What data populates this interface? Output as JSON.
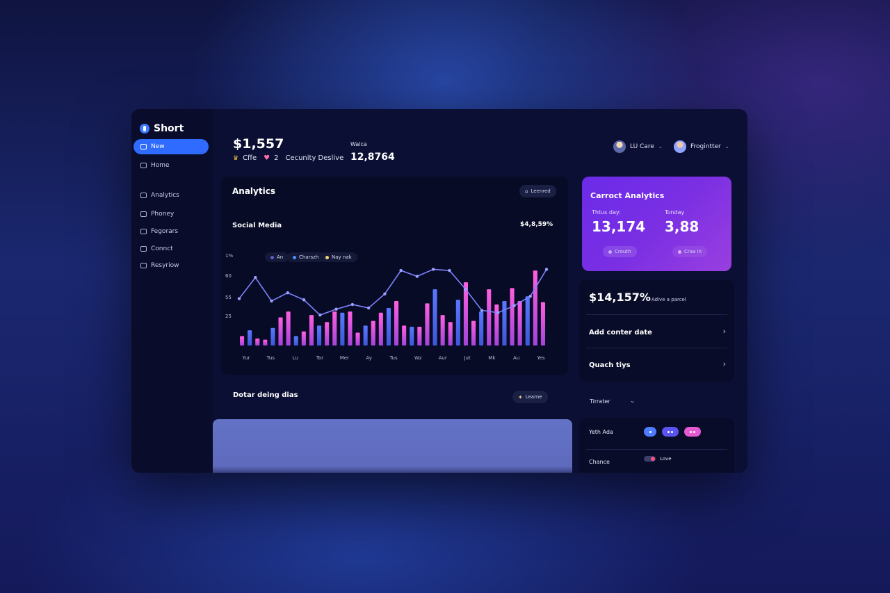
{
  "sidebar": {
    "brand": "Short",
    "items": [
      {
        "label": "New",
        "active": true
      },
      {
        "label": "Home"
      },
      {
        "label": "Analytics"
      },
      {
        "label": "Phoney"
      },
      {
        "label": "Fegorars"
      },
      {
        "label": "Connct"
      },
      {
        "label": "Resyriow"
      }
    ]
  },
  "header": {
    "amount": "$1,557",
    "sub_a": "Cffe",
    "sub_b": "2",
    "sub_c": "Cecunity Deslive",
    "stat_label": "Walca",
    "stat_value": "12,8764",
    "user1": "LU Care",
    "user2": "Frogintter"
  },
  "analytics": {
    "title": "Analytics",
    "button": "Leenred",
    "subtitle": "Social Media",
    "value_badge": "$4,8,59%",
    "legend": [
      "An",
      "Charszh",
      "Nay nak"
    ]
  },
  "chart_data": {
    "type": "bar",
    "title": "Social Media",
    "ytick_labels": [
      "1%",
      "60",
      "55",
      "25"
    ],
    "xtick_labels": [
      "Yur",
      "Tus",
      "Lu",
      "Tor",
      "Mer",
      "Ay",
      "Tus",
      "Wz",
      "Aur",
      "Jut",
      "Mk",
      "Au",
      "Yes"
    ],
    "series": [
      {
        "name": "An",
        "kind": "bar",
        "values": [
          8,
          13,
          6,
          5,
          15,
          24,
          29,
          8,
          12,
          26,
          17,
          20,
          29,
          28,
          29,
          11,
          17,
          21,
          28,
          32,
          38,
          17,
          16,
          16,
          36,
          48,
          26,
          20,
          39,
          54,
          21,
          29,
          48,
          35,
          38,
          49,
          38,
          42,
          64,
          37
        ]
      },
      {
        "name": "Charszh",
        "kind": "line",
        "values": [
          40,
          58,
          38,
          45,
          39,
          26,
          31,
          35,
          32,
          44,
          64,
          59,
          65,
          64,
          48,
          30,
          28,
          34,
          42,
          65
        ]
      }
    ]
  },
  "section2": {
    "title": "Dotar deing dias",
    "button": "Learne"
  },
  "carrot": {
    "title": "Carroct Analytics",
    "label1": "Thtus day:",
    "value1": "13,174",
    "label2": "Tonday",
    "value2": "3,88",
    "tag1": "Crouth",
    "tag2": "Craa in"
  },
  "stats_card": {
    "value": "$14,157%",
    "sub": "Adive a parcel",
    "row1": "Add conter date",
    "row2": "Quach tiys"
  },
  "filter": {
    "label": "Tirrater"
  },
  "settings": {
    "row1": "Yeth Ada",
    "row2": "Chance",
    "toggle_label": "Love"
  },
  "colors": {
    "accent": "#2f6bff",
    "bar_pink": "#e35ad8",
    "bar_blue": "#4f6cf0",
    "line": "#7c83ff"
  }
}
